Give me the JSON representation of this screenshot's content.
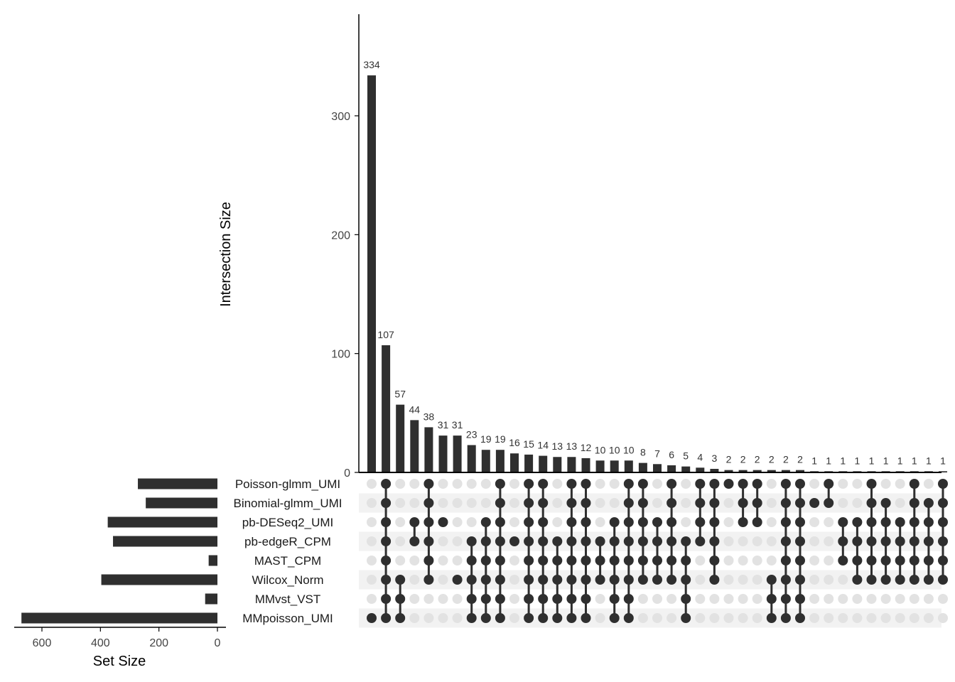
{
  "chart_data": {
    "type": "bar",
    "ylabel": "Intersection Size",
    "ylim": [
      0,
      380
    ],
    "yticks": [
      0,
      100,
      200,
      300
    ],
    "set_size_label": "Set Size",
    "set_size_xlim": [
      0,
      700
    ],
    "set_size_ticks": [
      600,
      400,
      200,
      0
    ],
    "sets": [
      {
        "name": "Poisson-glmm_UMI",
        "size": 272
      },
      {
        "name": "Binomial-glmm_UMI",
        "size": 245
      },
      {
        "name": "pb-DESeq2_UMI",
        "size": 375
      },
      {
        "name": "pb-edgeR_CPM",
        "size": 357
      },
      {
        "name": "MAST_CPM",
        "size": 30
      },
      {
        "name": "Wilcox_Norm",
        "size": 397
      },
      {
        "name": "MMvst_VST",
        "size": 42
      },
      {
        "name": "MMpoisson_UMI",
        "size": 670
      }
    ],
    "intersections": [
      {
        "value": 334,
        "label": "334",
        "members": [
          7
        ]
      },
      {
        "value": 107,
        "label": "107",
        "members": [
          0,
          1,
          2,
          3,
          4,
          5,
          6,
          7
        ]
      },
      {
        "value": 57,
        "label": "57",
        "members": [
          5,
          6,
          7
        ]
      },
      {
        "value": 44,
        "label": "44",
        "members": [
          2,
          3
        ]
      },
      {
        "value": 38,
        "label": "38",
        "members": [
          0,
          1,
          2,
          3,
          4,
          5
        ]
      },
      {
        "value": 31,
        "label": "31",
        "members": [
          2
        ]
      },
      {
        "value": 31,
        "label": "31",
        "members": [
          5
        ]
      },
      {
        "value": 23,
        "label": "23",
        "members": [
          3,
          4,
          5,
          6,
          7
        ]
      },
      {
        "value": 19,
        "label": "19",
        "members": [
          2,
          3,
          4,
          5,
          6,
          7
        ]
      },
      {
        "value": 19,
        "label": "19",
        "members": [
          0,
          1,
          2,
          3,
          4,
          5,
          6,
          7
        ]
      },
      {
        "value": 16,
        "label": "16",
        "members": [
          3
        ]
      },
      {
        "value": 15,
        "label": "15",
        "members": [
          0,
          1,
          2,
          3,
          4,
          5,
          6,
          7
        ]
      },
      {
        "value": 14,
        "label": "14",
        "members": [
          0,
          1,
          2,
          3,
          4,
          5,
          6,
          7
        ]
      },
      {
        "value": 13,
        "label": "13",
        "members": [
          3,
          4,
          5,
          6,
          7
        ]
      },
      {
        "value": 13,
        "label": "13",
        "members": [
          0,
          1,
          2,
          3,
          4,
          5,
          6,
          7
        ]
      },
      {
        "value": 12,
        "label": "12",
        "members": [
          0,
          1,
          2,
          3,
          4,
          5,
          6,
          7
        ]
      },
      {
        "value": 10,
        "label": "10",
        "members": [
          3,
          4,
          5
        ]
      },
      {
        "value": 10,
        "label": "10",
        "members": [
          2,
          3,
          4,
          5,
          6,
          7
        ]
      },
      {
        "value": 10,
        "label": "10",
        "members": [
          0,
          1,
          2,
          3,
          4,
          5,
          6,
          7
        ]
      },
      {
        "value": 8,
        "label": "8",
        "members": [
          0,
          1,
          2,
          3,
          4,
          5
        ]
      },
      {
        "value": 7,
        "label": "7",
        "members": [
          2,
          3,
          4,
          5
        ]
      },
      {
        "value": 6,
        "label": "6",
        "members": [
          0,
          1,
          2,
          3,
          4,
          5
        ]
      },
      {
        "value": 5,
        "label": "5",
        "members": [
          3,
          4,
          5,
          6,
          7
        ]
      },
      {
        "value": 4,
        "label": "4",
        "members": [
          0,
          1,
          2,
          3
        ]
      },
      {
        "value": 3,
        "label": "3",
        "members": [
          0,
          1,
          2,
          3,
          4,
          5
        ]
      },
      {
        "value": 2,
        "label": "2",
        "members": [
          0
        ]
      },
      {
        "value": 2,
        "label": "2",
        "members": [
          0,
          1,
          2
        ]
      },
      {
        "value": 2,
        "label": "2",
        "members": [
          0,
          1,
          2
        ]
      },
      {
        "value": 2,
        "label": "2",
        "members": [
          5,
          6,
          7
        ]
      },
      {
        "value": 2,
        "label": "2",
        "members": [
          0,
          1,
          2,
          3,
          4,
          5,
          6,
          7
        ]
      },
      {
        "value": 2,
        "label": "2",
        "members": [
          0,
          1,
          2,
          3,
          4,
          5,
          6,
          7
        ]
      },
      {
        "value": 1,
        "label": "1",
        "members": [
          1
        ]
      },
      {
        "value": 1,
        "label": "1",
        "members": [
          0,
          1
        ]
      },
      {
        "value": 1,
        "label": "1",
        "members": [
          2,
          3,
          4
        ]
      },
      {
        "value": 1,
        "label": "1",
        "members": [
          2,
          3,
          4,
          5
        ]
      },
      {
        "value": 1,
        "label": "1",
        "members": [
          0,
          1,
          2,
          3,
          4,
          5
        ]
      },
      {
        "value": 1,
        "label": "1",
        "members": [
          1,
          2,
          3,
          4,
          5
        ]
      },
      {
        "value": 1,
        "label": "1",
        "members": [
          2,
          3,
          4,
          5
        ]
      },
      {
        "value": 1,
        "label": "1",
        "members": [
          0,
          1,
          2,
          3,
          4,
          5
        ]
      },
      {
        "value": 1,
        "label": "1",
        "members": [
          1,
          2,
          3,
          4,
          5
        ]
      },
      {
        "value": 1,
        "label": "1",
        "members": [
          0,
          1,
          2,
          3,
          4,
          5
        ]
      }
    ],
    "colors": {
      "bar": "#2f2f2f",
      "dot_active": "#2f2f2f",
      "dot_inactive": "#e2e2e2",
      "stripe": "#f2f2f2",
      "text": "#333333",
      "axis": "#000000"
    },
    "grid": false,
    "legend": "none"
  }
}
